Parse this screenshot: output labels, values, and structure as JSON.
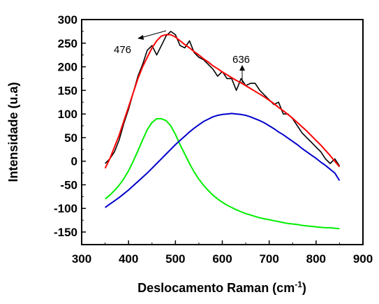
{
  "chart_data": {
    "type": "line",
    "xlabel": "Deslocamento Raman (cm",
    "xlabel_sup": "-1",
    "xlabel_close": ")",
    "ylabel": "Intensidade (u.a)",
    "xlim": [
      300,
      900
    ],
    "ylim": [
      -175,
      300
    ],
    "xticks": [
      300,
      400,
      500,
      600,
      700,
      800,
      900
    ],
    "yticks": [
      300,
      250,
      200,
      150,
      100,
      50,
      0,
      -50,
      -100,
      -150
    ],
    "grid": false,
    "annotations": [
      {
        "text": "476",
        "x": 476
      },
      {
        "text": "636",
        "x": 636
      }
    ],
    "series": [
      {
        "color": "#000000",
        "x": [
          350,
          360,
          370,
          380,
          390,
          400,
          410,
          420,
          430,
          440,
          450,
          460,
          470,
          480,
          490,
          500,
          510,
          520,
          530,
          540,
          550,
          560,
          570,
          580,
          590,
          600,
          610,
          620,
          630,
          640,
          650,
          660,
          670,
          680,
          690,
          700,
          710,
          720,
          730,
          740,
          750,
          760,
          770,
          780,
          790,
          800,
          810,
          820,
          830,
          840,
          850
        ],
        "y": [
          -5,
          5,
          20,
          45,
          80,
          110,
          145,
          180,
          205,
          235,
          245,
          225,
          245,
          265,
          275,
          268,
          245,
          240,
          255,
          230,
          220,
          215,
          205,
          195,
          180,
          190,
          175,
          175,
          150,
          175,
          160,
          165,
          165,
          150,
          140,
          130,
          120,
          125,
          100,
          100,
          90,
          75,
          60,
          50,
          40,
          30,
          20,
          5,
          -5,
          5,
          -10
        ]
      },
      {
        "color": "#ff0000",
        "x": [
          350,
          360,
          370,
          380,
          390,
          400,
          410,
          420,
          430,
          440,
          450,
          460,
          470,
          480,
          490,
          500,
          510,
          520,
          530,
          540,
          550,
          560,
          570,
          580,
          590,
          600,
          610,
          620,
          630,
          640,
          650,
          660,
          670,
          680,
          690,
          700,
          710,
          720,
          730,
          740,
          750,
          760,
          770,
          780,
          790,
          800,
          810,
          820,
          830,
          840,
          850
        ],
        "y": [
          -15,
          5,
          30,
          55,
          85,
          115,
          145,
          175,
          200,
          220,
          240,
          255,
          265,
          268,
          268,
          263,
          255,
          247,
          240,
          232,
          225,
          217,
          210,
          202,
          196,
          189,
          183,
          177,
          171,
          166,
          160,
          154,
          148,
          142,
          136,
          129,
          122,
          114,
          107,
          99,
          91,
          82,
          73,
          64,
          54,
          44,
          34,
          23,
          12,
          0,
          -12
        ]
      },
      {
        "color": "#00ee00",
        "x": [
          350,
          360,
          370,
          380,
          390,
          400,
          410,
          420,
          430,
          440,
          450,
          460,
          470,
          480,
          490,
          500,
          510,
          520,
          530,
          540,
          550,
          560,
          570,
          580,
          590,
          600,
          610,
          620,
          630,
          640,
          650,
          660,
          670,
          680,
          690,
          700,
          710,
          720,
          730,
          740,
          750,
          760,
          770,
          780,
          790,
          800,
          810,
          820,
          830,
          840,
          850
        ],
        "y": [
          -80,
          -72,
          -62,
          -51,
          -37,
          -20,
          0,
          22,
          45,
          67,
          82,
          90,
          90,
          86,
          75,
          57,
          35,
          15,
          -5,
          -23,
          -38,
          -51,
          -62,
          -72,
          -80,
          -87,
          -93,
          -98,
          -103,
          -107,
          -111,
          -114,
          -117,
          -120,
          -122,
          -124,
          -126,
          -128,
          -130,
          -132,
          -133,
          -134,
          -136,
          -137,
          -138,
          -139,
          -140,
          -141,
          -141,
          -142,
          -143
        ]
      },
      {
        "color": "#0000cc",
        "x": [
          350,
          360,
          370,
          380,
          390,
          400,
          410,
          420,
          430,
          440,
          450,
          460,
          470,
          480,
          490,
          500,
          510,
          520,
          530,
          540,
          550,
          560,
          570,
          580,
          590,
          600,
          610,
          620,
          630,
          640,
          650,
          660,
          670,
          680,
          690,
          700,
          710,
          720,
          730,
          740,
          750,
          760,
          770,
          780,
          790,
          800,
          810,
          820,
          830,
          840,
          850
        ],
        "y": [
          -98,
          -91,
          -84,
          -77,
          -69,
          -61,
          -52,
          -43,
          -34,
          -25,
          -15,
          -5,
          5,
          15,
          25,
          35,
          44,
          53,
          62,
          70,
          77,
          84,
          89,
          94,
          97,
          99,
          100,
          101,
          100,
          99,
          97,
          94,
          90,
          86,
          81,
          75,
          69,
          62,
          56,
          49,
          42,
          35,
          27,
          20,
          13,
          6,
          -2,
          -9,
          -17,
          -25,
          -41
        ]
      }
    ]
  }
}
